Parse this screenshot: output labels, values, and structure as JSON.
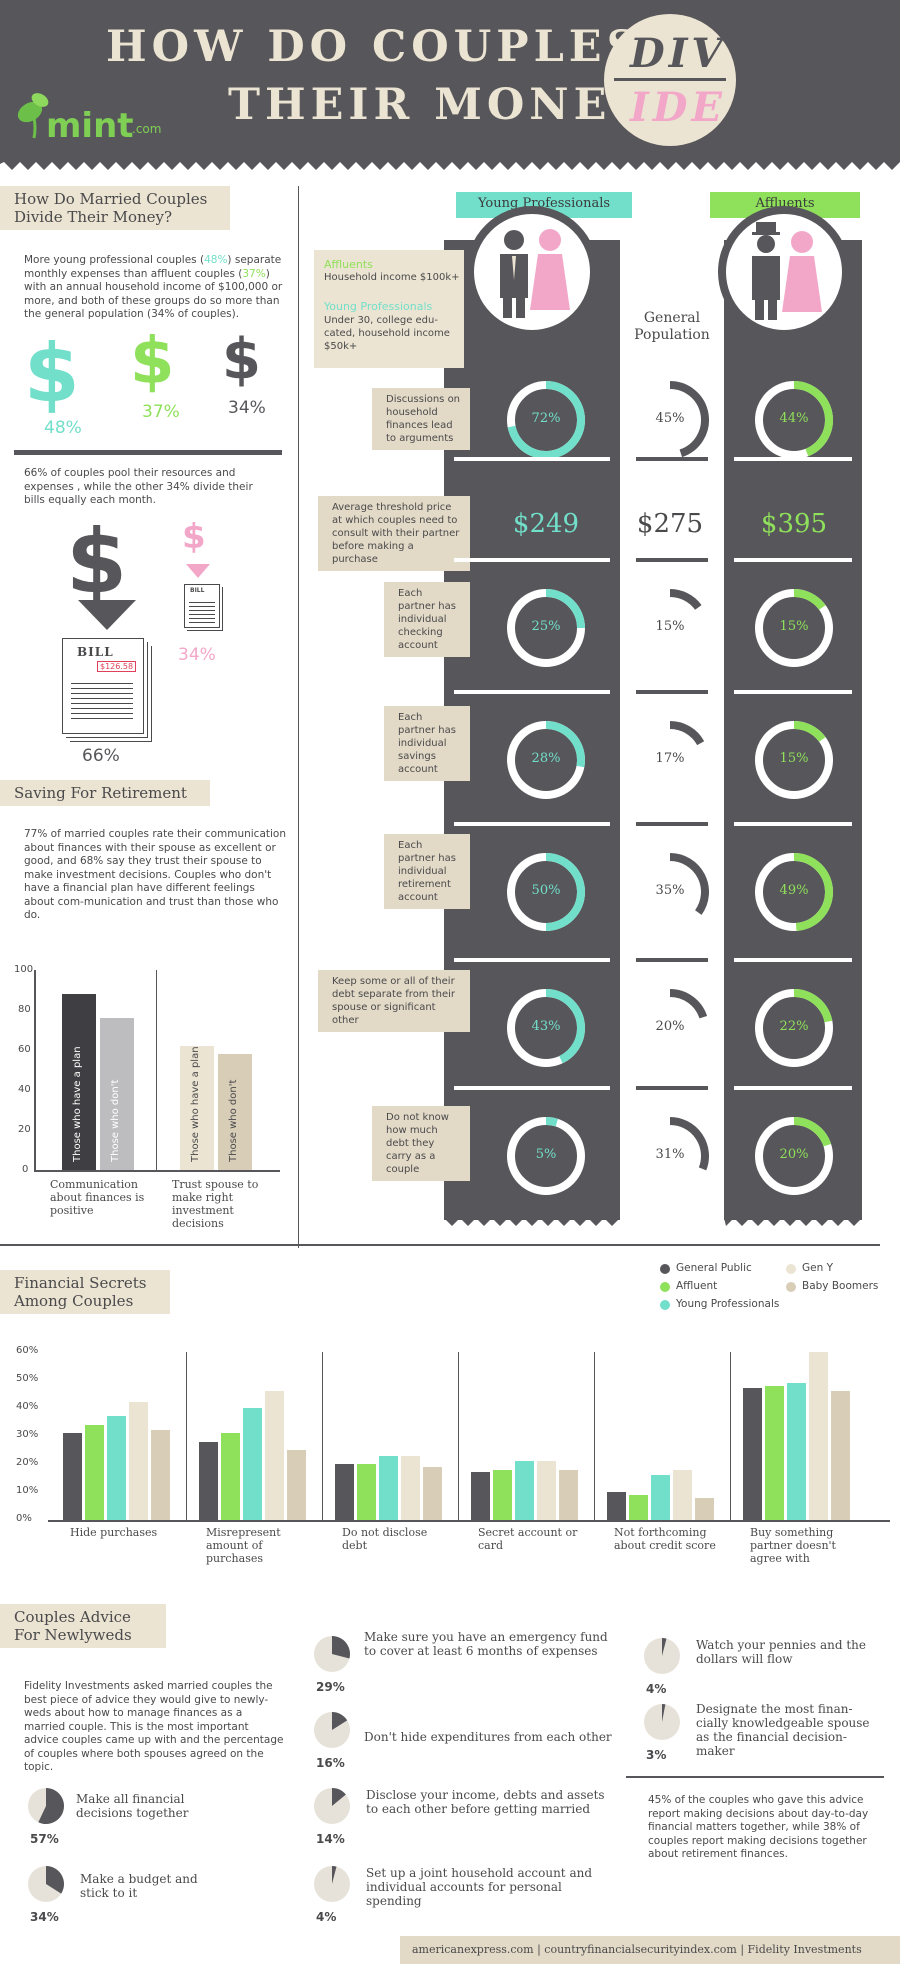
{
  "header": {
    "title_line1": "HOW DO COUPLES",
    "title_line2": "THEIR MONEY",
    "div_part1": "DIV",
    "div_part2": "IDE",
    "logo": "mint",
    "logo_suffix": ".com"
  },
  "married": {
    "heading_line1": "How Do Married Couples",
    "heading_line2": "Divide Their Money?",
    "para_a": "More young professional couples (",
    "para_b": "48%",
    "para_c": ") separate monthly expenses than affluent couples (",
    "para_d": "37%",
    "para_e": ") with an annual household income of $100,000 or more, and both of these groups do so more than the general population (34% of couples).",
    "pct_young": "48%",
    "pct_affluent": "37%",
    "pct_general": "34%",
    "pool_text": "66%  of couples pool their resources and expenses , while the other 34% divide their bills equally each month.",
    "bill_label": "BILL",
    "bill_amount": "$126.58",
    "pct_pool": "66%",
    "pct_split": "34%"
  },
  "legend_box": {
    "affluent_title": "Affluents",
    "affluent_desc": "Household income $100k+",
    "young_title": "Young Professionals",
    "young_desc": "Under 30, college edu-cated, household income $50k+"
  },
  "columns": {
    "young": "Young Professionals",
    "general": "General Population",
    "affluent": "Affluents"
  },
  "rows": [
    {
      "label": "Discussions on household finances lead to arguments",
      "young": "72%",
      "general": "45%",
      "affluent": "44%"
    },
    {
      "label": "Average threshold price at which couples need to consult with their partner before making a purchase",
      "young": "$249",
      "general": "$275",
      "affluent": "$395"
    },
    {
      "label": "Each partner has individual checking account",
      "young": "25%",
      "general": "15%",
      "affluent": "15%"
    },
    {
      "label": "Each partner has individual savings account",
      "young": "28%",
      "general": "17%",
      "affluent": "15%"
    },
    {
      "label": "Each partner has individual retirement account",
      "young": "50%",
      "general": "35%",
      "affluent": "49%"
    },
    {
      "label": "Keep some or all of their debt separate from their spouse or significant other",
      "young": "43%",
      "general": "20%",
      "affluent": "22%"
    },
    {
      "label": "Do not know how much debt they carry as a couple",
      "young": "5%",
      "general": "31%",
      "affluent": "20%"
    }
  ],
  "retirement": {
    "heading": "Saving For Retirement",
    "para": "77% of married couples rate their communication about finances with their spouse as excellent or good, and 68% say they trust their spouse to make investment decisions. Couples who don't have a financial plan have different feelings about com-munication and trust than those who do."
  },
  "secrets": {
    "heading_line1": "Financial Secrets",
    "heading_line2": "Among Couples"
  },
  "chart_data": [
    {
      "type": "bar",
      "title": "",
      "ylim": [
        0,
        100
      ],
      "yticks": [
        "0",
        "20",
        "40",
        "60",
        "80",
        "100"
      ],
      "categories": [
        "Communication about finances is positive",
        "Trust spouse to make right investment decisions"
      ],
      "series": [
        {
          "name": "Those who have a plan",
          "values": [
            88,
            62
          ]
        },
        {
          "name": "Those who don't",
          "values": [
            76,
            58
          ]
        }
      ]
    },
    {
      "type": "bar",
      "title": "",
      "ylim": [
        0,
        60
      ],
      "yticks": [
        "0%",
        "10%",
        "20%",
        "30%",
        "40%",
        "50%",
        "60%"
      ],
      "categories": [
        "Hide purchases",
        "Misrepresent amount of purchases",
        "Do not disclose debt",
        "Secret account or card",
        "Not forthcoming about credit score",
        "Buy something partner doesn't agree with"
      ],
      "series": [
        {
          "name": "General Public",
          "values": [
            31,
            28,
            20,
            17,
            10,
            47
          ]
        },
        {
          "name": "Affluent",
          "values": [
            34,
            31,
            20,
            18,
            9,
            48
          ]
        },
        {
          "name": "Young Professionals",
          "values": [
            37,
            40,
            23,
            21,
            16,
            49
          ]
        },
        {
          "name": "Gen Y",
          "values": [
            42,
            46,
            23,
            21,
            18,
            60
          ]
        },
        {
          "name": "Baby Boomers",
          "values": [
            32,
            25,
            19,
            18,
            8,
            46
          ]
        }
      ]
    }
  ],
  "advice": {
    "heading_line1": "Couples Advice",
    "heading_line2": "For Newlyweds",
    "intro": "Fidelity Investments asked married couples the best piece of advice they would give to newly-weds about how to manage finances as a married couple. This is the most important advice couples came up with and the percentage of couples where both spouses agreed on the topic.",
    "items": [
      {
        "text": "Make all financial decisions together",
        "pct": "57%",
        "value": 57
      },
      {
        "text": "Make a budget and stick to it",
        "pct": "34%",
        "value": 34
      },
      {
        "text": "Make sure you have an emergency fund to cover at least 6 months of expenses",
        "pct": "29%",
        "value": 29
      },
      {
        "text": "Don't hide expenditures from each other",
        "pct": "16%",
        "value": 16
      },
      {
        "text": "Disclose your income, debts and assets to each other before getting married",
        "pct": "14%",
        "value": 14
      },
      {
        "text": "Set up a joint household account and individual accounts for personal spending",
        "pct": "4%",
        "value": 4
      },
      {
        "text": "Watch your pennies and the dollars will flow",
        "pct": "4%",
        "value": 4
      },
      {
        "text": "Designate the most finan-cially knowledgeable spouse as the financial decision-maker",
        "pct": "3%",
        "value": 3
      }
    ],
    "footnote": "45% of the couples who gave this advice report making decisions about day-to-day financial matters together, while 38% of couples report making decisions together about retirement finances."
  },
  "footer": "americanexpress.com  |  countryfinancialsecurityindex.com  |  Fidelity Investments",
  "colors": {
    "dark": "#57565a",
    "teal": "#72dfca",
    "green": "#8fe05a",
    "pink": "#f2a7c9",
    "cream": "#ece4d2",
    "beige": "#d8cdb7"
  }
}
